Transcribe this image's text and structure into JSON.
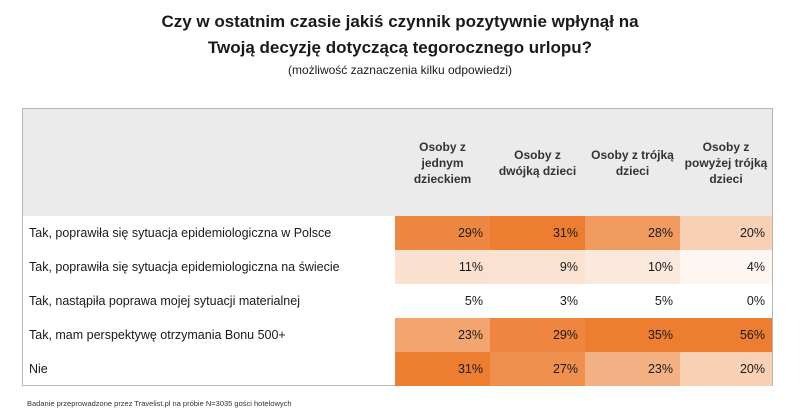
{
  "header": {
    "title_line1": "Czy w ostatnim czasie jakiś czynnik pozytywnie wpłynął na",
    "title_line2": "Twoją decyzję dotyczącą tegorocznego urlopu?",
    "subtitle": "(możliwość zaznaczenia kilku odpowiedzi)"
  },
  "chart_data": {
    "type": "table",
    "columns": [
      "Osoby z jednym dzieckiem",
      "Osoby z dwójką dzieci",
      "Osoby z trójką dzieci",
      "Osoby z powyżej trójką dzieci"
    ],
    "rows": [
      {
        "label": "Tak, poprawiła się sytuacja epidemiologiczna w Polsce",
        "values": [
          29,
          31,
          28,
          20
        ],
        "display": [
          "29%",
          "31%",
          "28%",
          "20%"
        ]
      },
      {
        "label": "Tak, poprawiła się sytuacja epidemiologiczna na świecie",
        "values": [
          11,
          9,
          10,
          4
        ],
        "display": [
          "11%",
          "9%",
          "10%",
          "4%"
        ]
      },
      {
        "label": "Tak, nastąpiła poprawa mojej sytuacji materialnej",
        "values": [
          5,
          3,
          5,
          0
        ],
        "display": [
          "5%",
          "3%",
          "5%",
          "0%"
        ]
      },
      {
        "label": "Tak, mam perspektywę otrzymania Bonu 500+",
        "values": [
          23,
          29,
          35,
          56
        ],
        "display": [
          "23%",
          "29%",
          "35%",
          "56%"
        ]
      },
      {
        "label": "Nie",
        "values": [
          31,
          27,
          23,
          20
        ],
        "display": [
          "31%",
          "27%",
          "23%",
          "20%"
        ]
      }
    ],
    "heat_colors": {
      "high": "#ed7d31",
      "low": "#ffffff"
    }
  },
  "footnote": "Badanie przeprowadzone przez Travelist.pl na próbie N=3035 gości hotelowych"
}
